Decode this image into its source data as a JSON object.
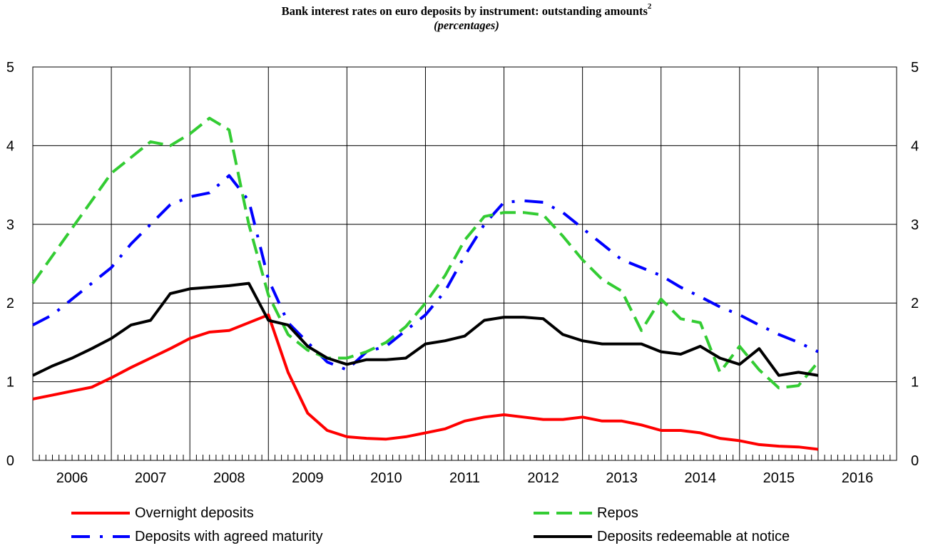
{
  "chart_data": {
    "type": "line",
    "title": "Bank interest rates on euro deposits by instrument: outstanding amounts",
    "title_superscript": "2",
    "subtitle": "(percentages)",
    "xlabel": "",
    "ylabel": "",
    "x_range": [
      2006.0,
      2017.0
    ],
    "ylim": [
      0,
      5
    ],
    "yticks": [
      "0",
      "1",
      "2",
      "3",
      "4",
      "5"
    ],
    "xticks": [
      {
        "label": "2006",
        "year": 2006
      },
      {
        "label": "2007",
        "year": 2007
      },
      {
        "label": "2008",
        "year": 2008
      },
      {
        "label": "2009",
        "year": 2009
      },
      {
        "label": "2010",
        "year": 2010
      },
      {
        "label": "2011",
        "year": 2011
      },
      {
        "label": "2012",
        "year": 2012
      },
      {
        "label": "2013",
        "year": 2013
      },
      {
        "label": "2014",
        "year": 2014
      },
      {
        "label": "2015",
        "year": 2015
      },
      {
        "label": "2016",
        "year": 2016
      }
    ],
    "grid": true,
    "y_axis_on_both_sides": true,
    "legend_position": "bottom",
    "series": [
      {
        "name": "Overnight deposits",
        "color": "#ff0000",
        "dash": "solid",
        "x": [
          2006.0,
          2006.25,
          2006.5,
          2006.75,
          2007.0,
          2007.25,
          2007.5,
          2007.75,
          2008.0,
          2008.25,
          2008.5,
          2008.75,
          2009.0,
          2009.25,
          2009.5,
          2009.75,
          2010.0,
          2010.25,
          2010.5,
          2010.75,
          2011.0,
          2011.25,
          2011.5,
          2011.75,
          2012.0,
          2012.25,
          2012.5,
          2012.75,
          2013.0,
          2013.25,
          2013.5,
          2013.75,
          2014.0,
          2014.25,
          2014.5,
          2014.75,
          2015.0,
          2015.25,
          2015.5,
          2015.75,
          2016.0
        ],
        "y": [
          0.78,
          0.83,
          0.88,
          0.93,
          1.05,
          1.18,
          1.3,
          1.42,
          1.55,
          1.63,
          1.65,
          1.75,
          1.85,
          1.12,
          0.6,
          0.38,
          0.3,
          0.28,
          0.27,
          0.3,
          0.35,
          0.4,
          0.5,
          0.55,
          0.58,
          0.55,
          0.52,
          0.52,
          0.55,
          0.5,
          0.5,
          0.45,
          0.38,
          0.38,
          0.35,
          0.28,
          0.25,
          0.2,
          0.18,
          0.17,
          0.14
        ]
      },
      {
        "name": "Deposits with agreed maturity",
        "color": "#0000ff",
        "dash": "dash-dot",
        "x": [
          2006.0,
          2006.25,
          2006.5,
          2006.75,
          2007.0,
          2007.25,
          2007.5,
          2007.75,
          2008.0,
          2008.25,
          2008.5,
          2008.75,
          2009.0,
          2009.25,
          2009.5,
          2009.75,
          2010.0,
          2010.25,
          2010.5,
          2010.75,
          2011.0,
          2011.25,
          2011.5,
          2011.75,
          2012.0,
          2012.25,
          2012.5,
          2012.75,
          2013.0,
          2013.25,
          2013.5,
          2013.75,
          2014.0,
          2014.25,
          2014.5,
          2014.75,
          2015.0,
          2015.25,
          2015.5,
          2015.75,
          2016.0
        ],
        "y": [
          1.72,
          1.85,
          2.05,
          2.25,
          2.45,
          2.75,
          3.0,
          3.25,
          3.35,
          3.4,
          3.62,
          3.3,
          2.3,
          1.75,
          1.5,
          1.25,
          1.15,
          1.38,
          1.45,
          1.65,
          1.85,
          2.15,
          2.6,
          3.0,
          3.28,
          3.3,
          3.28,
          3.15,
          2.95,
          2.75,
          2.55,
          2.45,
          2.35,
          2.2,
          2.08,
          1.95,
          1.85,
          1.72,
          1.6,
          1.5,
          1.38
        ]
      },
      {
        "name": "Repos",
        "color": "#33cc33",
        "dash": "dashed",
        "x": [
          2006.0,
          2006.25,
          2006.5,
          2006.75,
          2007.0,
          2007.25,
          2007.5,
          2007.75,
          2008.0,
          2008.25,
          2008.5,
          2008.75,
          2009.0,
          2009.25,
          2009.5,
          2009.75,
          2010.0,
          2010.25,
          2010.5,
          2010.75,
          2011.0,
          2011.25,
          2011.5,
          2011.75,
          2012.0,
          2012.25,
          2012.5,
          2012.75,
          2013.0,
          2013.25,
          2013.5,
          2013.75,
          2014.0,
          2014.25,
          2014.5,
          2014.75,
          2015.0,
          2015.25,
          2015.5,
          2015.75,
          2016.0
        ],
        "y": [
          2.25,
          2.6,
          2.95,
          3.3,
          3.65,
          3.85,
          4.05,
          4.0,
          4.15,
          4.35,
          4.2,
          3.0,
          2.1,
          1.6,
          1.4,
          1.3,
          1.3,
          1.38,
          1.5,
          1.7,
          2.0,
          2.35,
          2.8,
          3.1,
          3.15,
          3.15,
          3.12,
          2.85,
          2.55,
          2.3,
          2.15,
          1.65,
          2.05,
          1.8,
          1.75,
          1.12,
          1.45,
          1.15,
          0.92,
          0.95,
          1.25
        ]
      },
      {
        "name": "Deposits redeemable at notice",
        "color": "#000000",
        "dash": "solid",
        "x": [
          2006.0,
          2006.25,
          2006.5,
          2006.75,
          2007.0,
          2007.25,
          2007.5,
          2007.75,
          2008.0,
          2008.25,
          2008.5,
          2008.75,
          2009.0,
          2009.25,
          2009.5,
          2009.75,
          2010.0,
          2010.25,
          2010.5,
          2010.75,
          2011.0,
          2011.25,
          2011.5,
          2011.75,
          2012.0,
          2012.25,
          2012.5,
          2012.75,
          2013.0,
          2013.25,
          2013.5,
          2013.75,
          2014.0,
          2014.25,
          2014.5,
          2014.75,
          2015.0,
          2015.25,
          2015.5,
          2015.75,
          2016.0
        ],
        "y": [
          1.08,
          1.2,
          1.3,
          1.42,
          1.55,
          1.72,
          1.78,
          2.12,
          2.18,
          2.2,
          2.22,
          2.25,
          1.78,
          1.72,
          1.45,
          1.3,
          1.22,
          1.28,
          1.28,
          1.3,
          1.48,
          1.52,
          1.58,
          1.78,
          1.82,
          1.82,
          1.8,
          1.6,
          1.52,
          1.48,
          1.48,
          1.48,
          1.38,
          1.35,
          1.45,
          1.3,
          1.22,
          1.42,
          1.08,
          1.12,
          1.08
        ]
      }
    ]
  }
}
